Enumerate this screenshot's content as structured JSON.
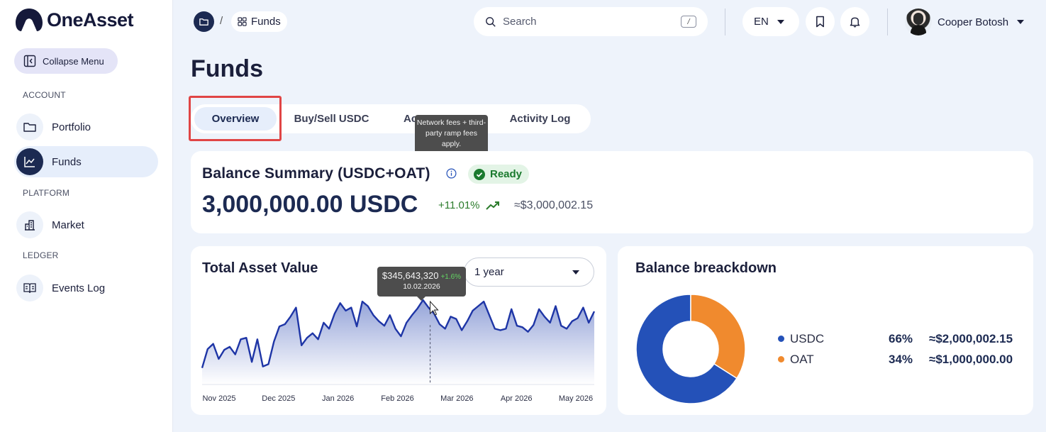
{
  "app": {
    "name": "OneAsset"
  },
  "sidebar": {
    "collapse_label": "Collapse Menu",
    "sections": [
      {
        "label": "ACCOUNT",
        "items": [
          {
            "label": "Portfolio",
            "icon": "folder-icon"
          },
          {
            "label": "Funds",
            "icon": "chart-line-icon",
            "active": true
          }
        ]
      },
      {
        "label": "PLATFORM",
        "items": [
          {
            "label": "Market",
            "icon": "building-icon"
          }
        ]
      },
      {
        "label": "LEDGER",
        "items": [
          {
            "label": "Events Log",
            "icon": "book-icon"
          }
        ]
      }
    ]
  },
  "header": {
    "breadcrumb_sep": "/",
    "breadcrumb_current": "Funds",
    "search_placeholder": "Search",
    "search_shortcut": "/",
    "language": "EN",
    "user_name": "Cooper Botosh"
  },
  "page": {
    "title": "Funds"
  },
  "tabs": [
    {
      "label": "Overview",
      "active": true
    },
    {
      "label": "Buy/Sell USDC"
    },
    {
      "label": "Ac"
    },
    {
      "label": "Activity Log"
    }
  ],
  "fee_tooltip": "Network fees + third-party ramp fees apply.",
  "balance": {
    "title": "Balance Summary (USDC+OAT)",
    "status": "Ready",
    "amount": "3,000,000.00 USDC",
    "change": "+11.01%",
    "usd_equiv": "≈$3,000,002.15"
  },
  "total_asset": {
    "title": "Total Asset Value",
    "period": "1 year",
    "tooltip_value": "$345,643,320",
    "tooltip_change": "+1.6%",
    "tooltip_date": "10.02.2026"
  },
  "chart_data": {
    "type": "area",
    "x_ticks": [
      "Nov 2025",
      "Dec 2025",
      "Jan 2026",
      "Feb 2026",
      "Mar 2026",
      "Apr 2026",
      "May 2026"
    ],
    "values": [
      20,
      45,
      52,
      32,
      44,
      48,
      38,
      58,
      60,
      28,
      58,
      22,
      25,
      55,
      75,
      78,
      88,
      100,
      50,
      60,
      66,
      58,
      80,
      72,
      92,
      106,
      96,
      100,
      75,
      108,
      102,
      90,
      82,
      76,
      90,
      72,
      62,
      80,
      90,
      99,
      110,
      100,
      92,
      78,
      72,
      88,
      85,
      70,
      82,
      96,
      102,
      108,
      90,
      72,
      70,
      72,
      98,
      76,
      74,
      68,
      77,
      98,
      88,
      80,
      102,
      76,
      72,
      82,
      86,
      100,
      80,
      95
    ],
    "highlight_index": 40,
    "colors": {
      "line": "#1e35a6",
      "fill_top": "#8e9ed6",
      "fill_bottom": "#ffffff"
    }
  },
  "breakdown": {
    "title": "Balance breackdown",
    "items": [
      {
        "name": "USDC",
        "pct": "66%",
        "amount": "≈$2,000,002.15",
        "value": 66,
        "color": "#2451b8"
      },
      {
        "name": "OAT",
        "pct": "34%",
        "amount": "≈$1,000,000.00",
        "value": 34,
        "color": "#f08a2e"
      }
    ]
  }
}
